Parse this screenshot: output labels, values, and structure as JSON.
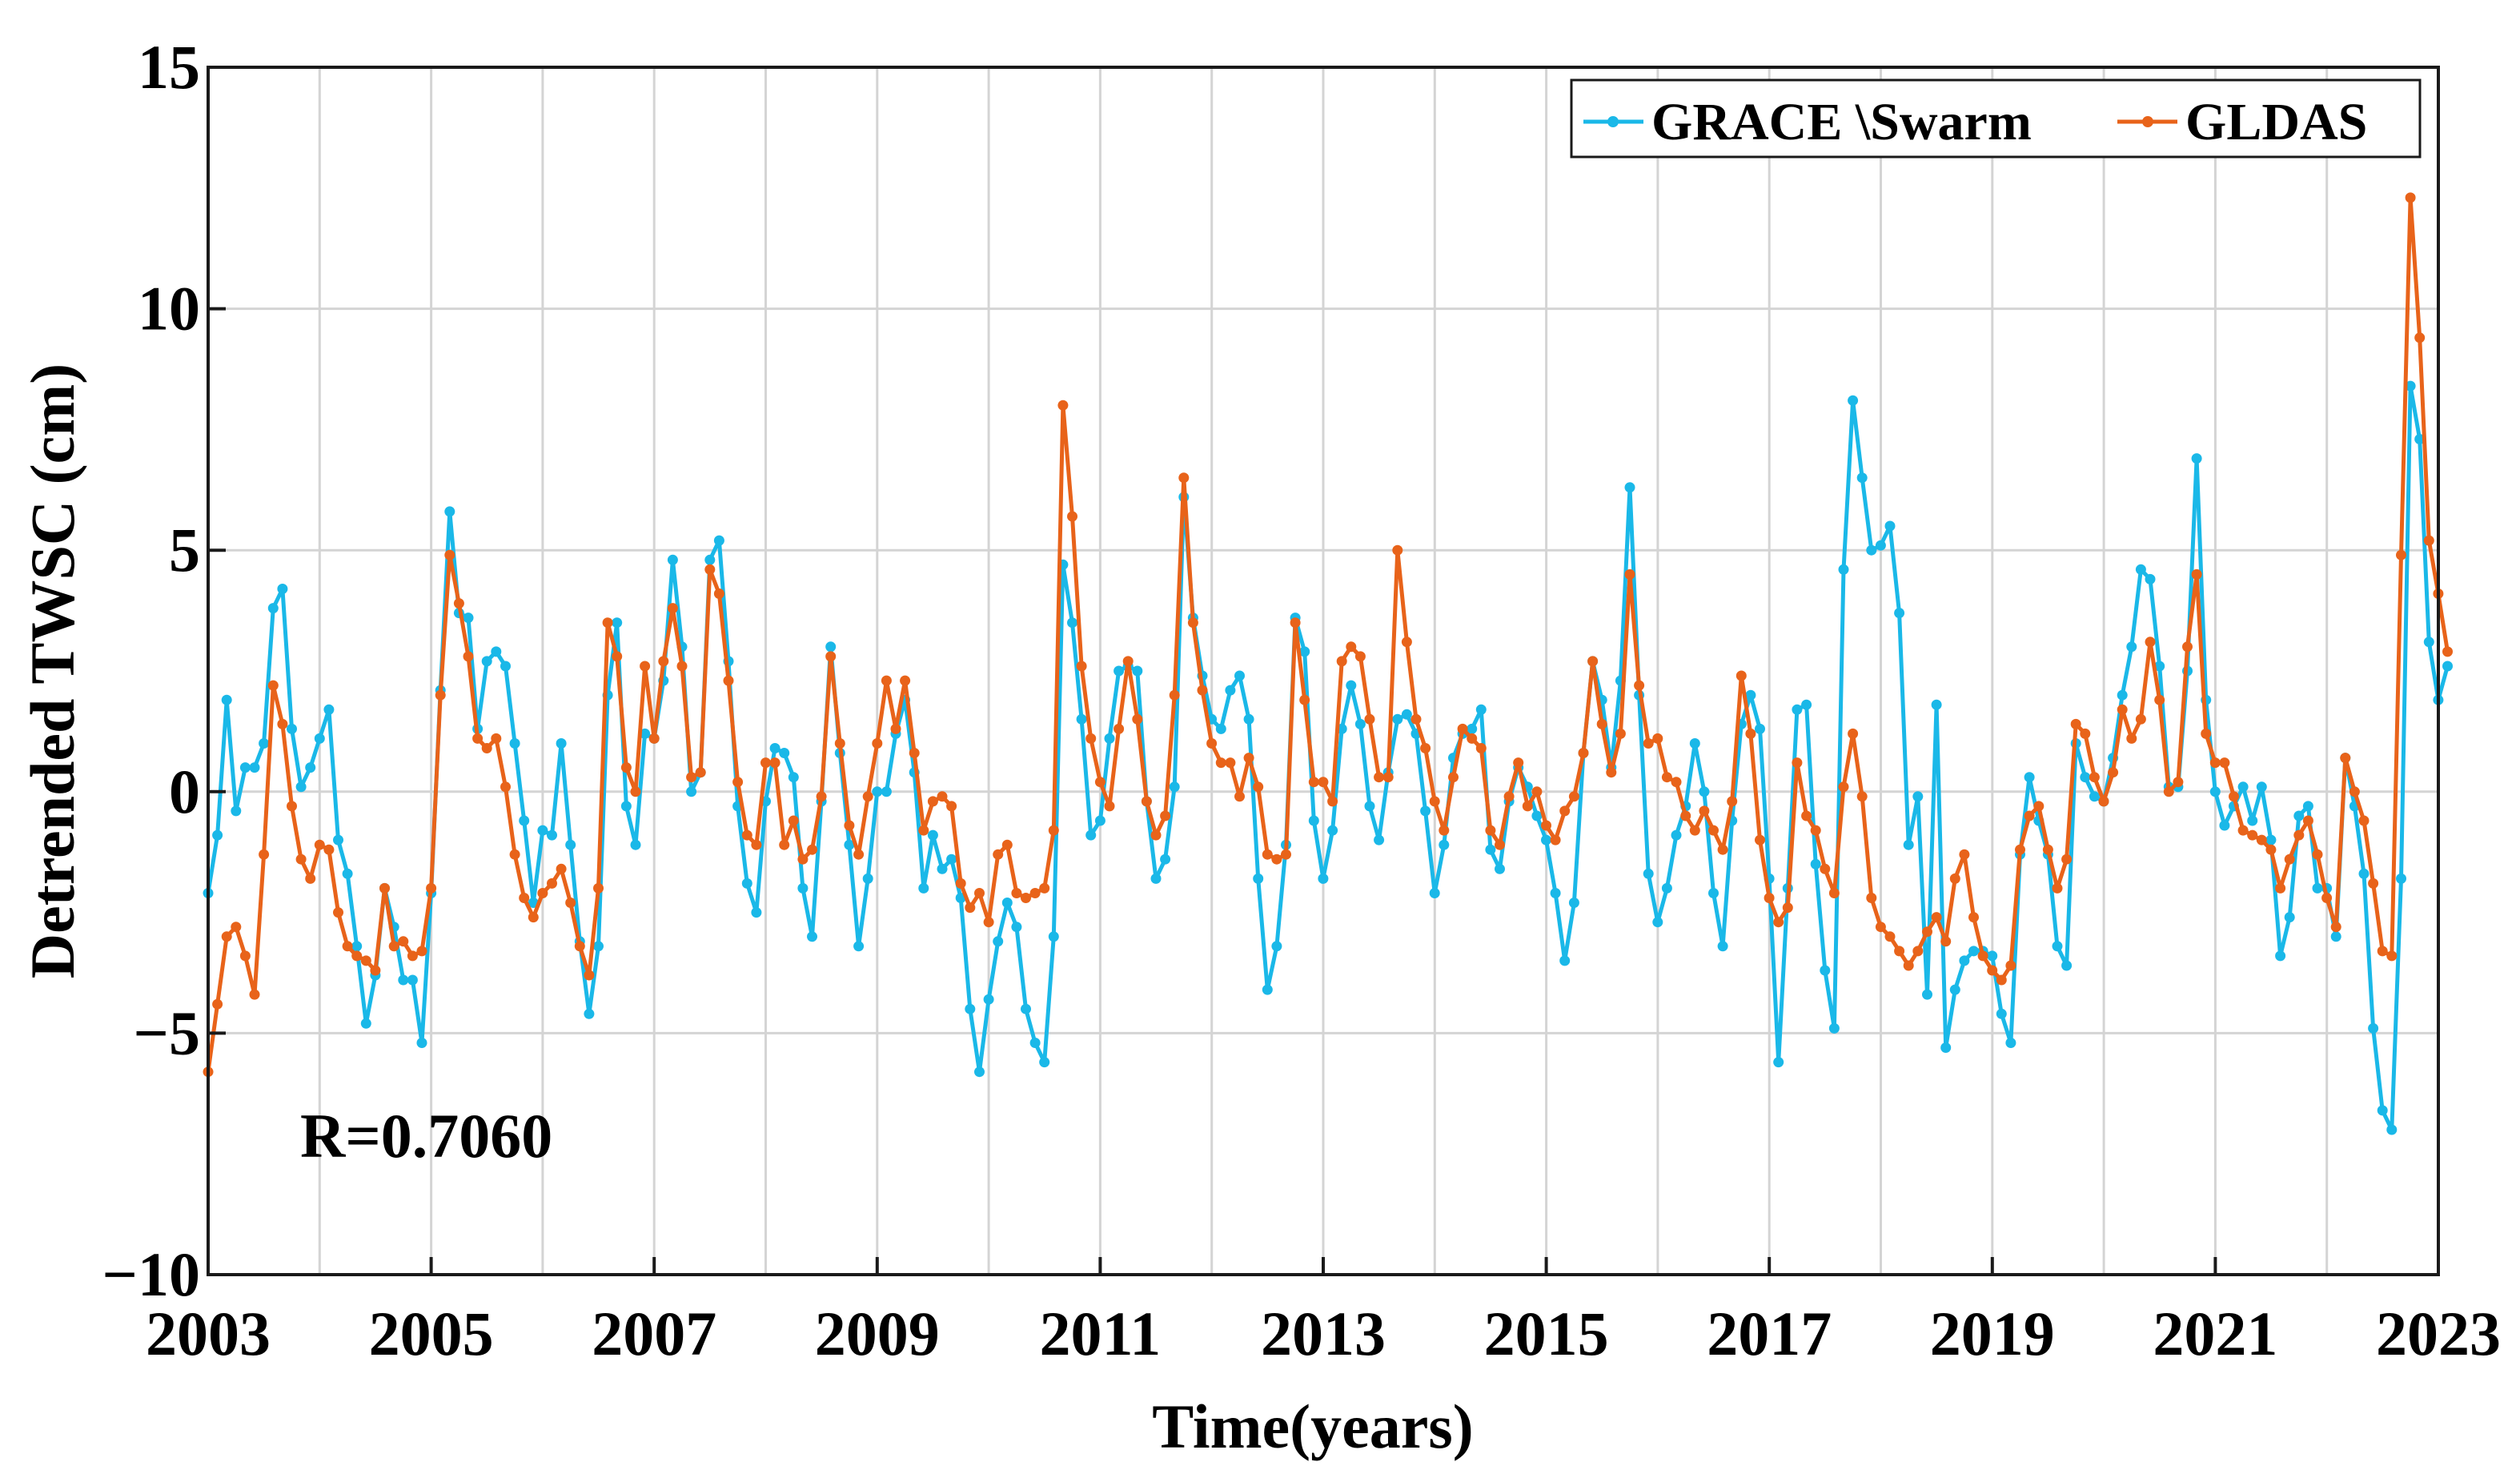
{
  "chart_data": {
    "type": "line",
    "title": "",
    "xlabel": "Time(years)",
    "ylabel": "Detrended TWSC (cm)",
    "xlim": [
      2003,
      2023
    ],
    "ylim": [
      -10,
      15
    ],
    "xticks": [
      2003,
      2005,
      2007,
      2009,
      2011,
      2013,
      2015,
      2017,
      2019,
      2021,
      2023
    ],
    "xtick_labels": [
      "2003",
      "2005",
      "2007",
      "2009",
      "2011",
      "2013",
      "2015",
      "2017",
      "2019",
      "2021",
      "2023"
    ],
    "yticks": [
      -10,
      -5,
      0,
      5,
      10,
      15
    ],
    "ytick_labels": [
      "−10",
      "−5",
      "0",
      "5",
      "10",
      "15"
    ],
    "grid": true,
    "legend_position": "top-right",
    "annotation": "R=0.7060",
    "x_start": 2003.0,
    "x_step": 0.08333,
    "series": [
      {
        "name": "GRACE \\Swarm",
        "color": "#1ab8e8",
        "values": [
          -2.1,
          -0.9,
          1.9,
          -0.4,
          0.5,
          0.5,
          1.0,
          3.8,
          4.2,
          1.3,
          0.1,
          0.5,
          1.1,
          1.7,
          -1.0,
          -1.7,
          -3.2,
          -4.8,
          -3.8,
          -2.0,
          -2.8,
          -3.9,
          -3.9,
          -5.2,
          -2.1,
          2.1,
          5.8,
          3.7,
          3.6,
          1.3,
          2.7,
          2.9,
          2.6,
          1.0,
          -0.6,
          -2.3,
          -0.8,
          -0.9,
          1.0,
          -1.1,
          -3.1,
          -4.6,
          -3.2,
          2.0,
          3.5,
          -0.3,
          -1.1,
          1.2,
          1.1,
          2.3,
          4.8,
          3.0,
          0.0,
          0.4,
          4.8,
          5.2,
          2.7,
          -0.3,
          -1.9,
          -2.5,
          -0.2,
          0.9,
          0.8,
          0.3,
          -2.0,
          -3.0,
          -0.2,
          3.0,
          0.8,
          -1.1,
          -3.2,
          -1.8,
          0.0,
          0.0,
          1.2,
          1.9,
          0.4,
          -2.0,
          -0.9,
          -1.6,
          -1.4,
          -2.2,
          -4.5,
          -5.8,
          -4.3,
          -3.1,
          -2.3,
          -2.8,
          -4.5,
          -5.2,
          -5.6,
          -3.0,
          4.7,
          3.5,
          1.5,
          -0.9,
          -0.6,
          1.1,
          2.5,
          2.6,
          2.5,
          -0.2,
          -1.8,
          -1.4,
          0.1,
          6.1,
          3.6,
          2.4,
          1.5,
          1.3,
          2.1,
          2.4,
          1.5,
          -1.8,
          -4.1,
          -3.2,
          -1.1,
          3.6,
          2.9,
          -0.6,
          -1.8,
          -0.8,
          1.3,
          2.2,
          1.4,
          -0.3,
          -1.0,
          0.4,
          1.5,
          1.6,
          1.2,
          -0.4,
          -2.1,
          -1.1,
          0.7,
          1.2,
          1.3,
          1.7,
          -1.2,
          -1.6,
          -0.2,
          0.5,
          0.1,
          -0.5,
          -1.0,
          -2.1,
          -3.5,
          -2.3,
          0.8,
          2.7,
          1.9,
          0.5,
          2.3,
          6.3,
          2.0,
          -1.7,
          -2.7,
          -2.0,
          -0.9,
          -0.3,
          1.0,
          0.0,
          -2.1,
          -3.2,
          -0.6,
          1.4,
          2.0,
          1.3,
          -1.8,
          -5.6,
          -2.0,
          1.7,
          1.8,
          -1.5,
          -3.7,
          -4.9,
          4.6,
          8.1,
          6.5,
          5.0,
          5.1,
          5.5,
          3.7,
          -1.1,
          -0.1,
          -4.2,
          1.8,
          -5.3,
          -4.1,
          -3.5,
          -3.3,
          -3.3,
          -3.4,
          -4.6,
          -5.2,
          -1.3,
          0.3,
          -0.6,
          -1.3,
          -3.2,
          -3.6,
          1.0,
          0.3,
          -0.1,
          -0.2,
          0.7,
          2.0,
          3.0,
          4.6,
          4.4,
          2.6,
          0.1,
          0.1,
          2.5,
          6.9,
          1.9,
          0.0,
          -0.7,
          -0.3,
          0.1,
          -0.6,
          0.1,
          -1.0,
          -3.4,
          -2.6,
          -0.5,
          -0.3,
          -2.0,
          -2.0,
          -3.0,
          0.7,
          -0.3,
          -1.7,
          -4.9,
          -6.6,
          -7.0,
          -1.8,
          8.4,
          7.3,
          3.1,
          1.9,
          2.6
        ]
      },
      {
        "name": "GLDAS",
        "color": "#e8631a",
        "values": [
          -5.8,
          -4.4,
          -3.0,
          -2.8,
          -3.4,
          -4.2,
          -1.3,
          2.2,
          1.4,
          -0.3,
          -1.4,
          -1.8,
          -1.1,
          -1.2,
          -2.5,
          -3.2,
          -3.4,
          -3.5,
          -3.7,
          -2.0,
          -3.2,
          -3.1,
          -3.4,
          -3.3,
          -2.0,
          2.0,
          4.9,
          3.9,
          2.8,
          1.1,
          0.9,
          1.1,
          0.1,
          -1.3,
          -2.2,
          -2.6,
          -2.1,
          -1.9,
          -1.6,
          -2.3,
          -3.2,
          -3.8,
          -2.0,
          3.5,
          2.8,
          0.5,
          0.0,
          2.6,
          1.1,
          2.7,
          3.8,
          2.6,
          0.3,
          0.4,
          4.6,
          4.1,
          2.3,
          0.2,
          -0.9,
          -1.1,
          0.6,
          0.6,
          -1.1,
          -0.6,
          -1.4,
          -1.2,
          -0.1,
          2.8,
          1.0,
          -0.7,
          -1.3,
          -0.1,
          1.0,
          2.3,
          1.3,
          2.3,
          0.8,
          -0.8,
          -0.2,
          -0.1,
          -0.3,
          -1.9,
          -2.4,
          -2.1,
          -2.7,
          -1.3,
          -1.1,
          -2.1,
          -2.2,
          -2.1,
          -2.0,
          -0.8,
          8.0,
          5.7,
          2.6,
          1.1,
          0.2,
          -0.3,
          1.3,
          2.7,
          1.5,
          -0.2,
          -0.9,
          -0.5,
          2.0,
          6.5,
          3.5,
          2.1,
          1.0,
          0.6,
          0.6,
          -0.1,
          0.7,
          0.1,
          -1.3,
          -1.4,
          -1.3,
          3.5,
          1.9,
          0.2,
          0.2,
          -0.2,
          2.7,
          3.0,
          2.8,
          1.5,
          0.3,
          0.3,
          5.0,
          3.1,
          1.5,
          0.9,
          -0.2,
          -0.8,
          0.3,
          1.3,
          1.1,
          0.9,
          -0.8,
          -1.1,
          -0.1,
          0.6,
          -0.3,
          0.0,
          -0.7,
          -1.0,
          -0.4,
          -0.1,
          0.8,
          2.7,
          1.4,
          0.4,
          1.2,
          4.5,
          2.2,
          1.0,
          1.1,
          0.3,
          0.2,
          -0.5,
          -0.8,
          -0.4,
          -0.8,
          -1.2,
          -0.2,
          2.4,
          1.2,
          -1.0,
          -2.2,
          -2.7,
          -2.4,
          0.6,
          -0.5,
          -0.8,
          -1.6,
          -2.1,
          0.1,
          1.2,
          -0.1,
          -2.2,
          -2.8,
          -3.0,
          -3.3,
          -3.6,
          -3.3,
          -2.9,
          -2.6,
          -3.1,
          -1.8,
          -1.3,
          -2.6,
          -3.4,
          -3.7,
          -3.9,
          -3.6,
          -1.2,
          -0.5,
          -0.3,
          -1.2,
          -2.0,
          -1.4,
          1.4,
          1.2,
          0.3,
          -0.2,
          0.4,
          1.7,
          1.1,
          1.5,
          3.1,
          1.9,
          0.0,
          0.2,
          3.0,
          4.5,
          1.2,
          0.6,
          0.6,
          -0.1,
          -0.8,
          -0.9,
          -1.0,
          -1.2,
          -2.0,
          -1.4,
          -0.9,
          -0.6,
          -1.3,
          -2.2,
          -2.8,
          0.7,
          0.0,
          -0.6,
          -1.9,
          -3.3,
          -3.4,
          4.9,
          12.3,
          9.4,
          5.2,
          4.1,
          2.9
        ]
      }
    ]
  }
}
